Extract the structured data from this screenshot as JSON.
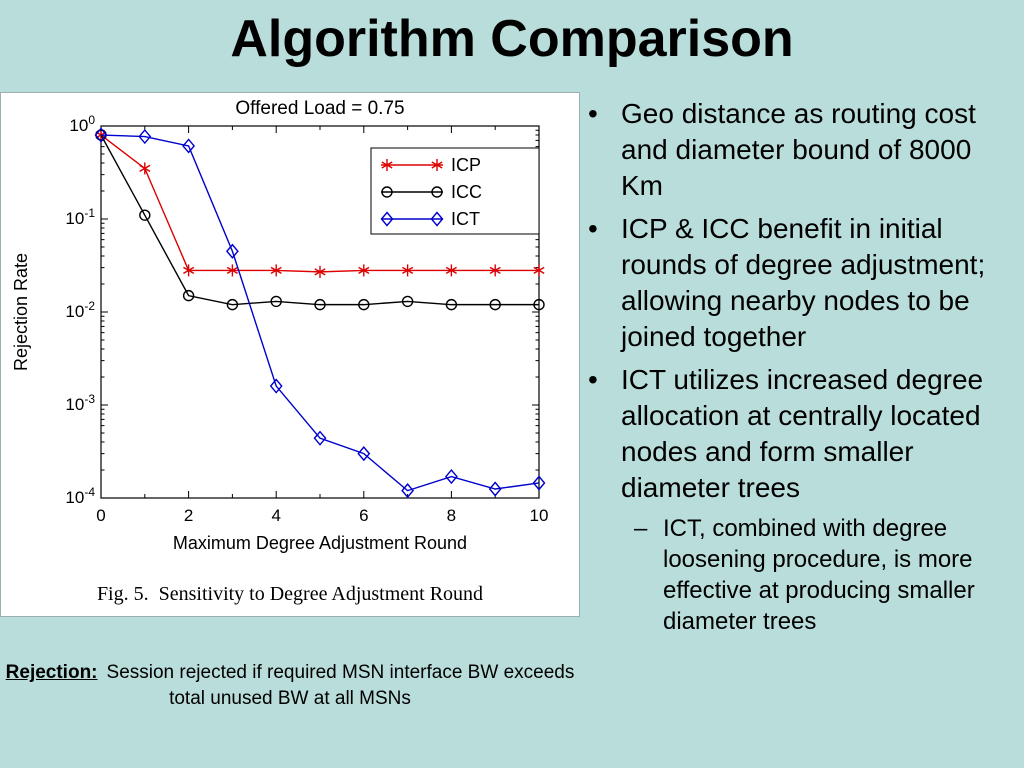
{
  "slide": {
    "title": "Algorithm Comparison",
    "background_color": "#b9dddb",
    "text_color": "#000000",
    "bullets": [
      {
        "level": 1,
        "marker": "•",
        "text": "Geo distance as routing cost and diameter bound of 8000 Km"
      },
      {
        "level": 1,
        "marker": "•",
        "text": "ICP & ICC benefit in initial rounds of degree adjustment; allowing nearby nodes to be joined together"
      },
      {
        "level": 1,
        "marker": "•",
        "text": "ICT utilizes increased degree allocation at centrally located nodes and form smaller diameter trees"
      },
      {
        "level": 2,
        "marker": "–",
        "text": "ICT, combined with degree loosening procedure, is more effective at producing smaller diameter trees"
      }
    ],
    "figure_caption": "Fig. 5.  Sensitivity to Degree Adjustment Round",
    "footnote": {
      "label": "Rejection:",
      "text": "Session rejected if required MSN interface BW exceeds total unused BW at all MSNs"
    }
  },
  "chart_data": {
    "type": "line",
    "title": "Offered Load = 0.75",
    "xlabel": "Maximum Degree Adjustment Round",
    "ylabel": "Rejection Rate",
    "x": [
      0,
      1,
      2,
      3,
      4,
      5,
      6,
      7,
      8,
      9,
      10
    ],
    "xlim": [
      0,
      10
    ],
    "x_ticks": [
      0,
      2,
      4,
      6,
      8,
      10
    ],
    "y_scale": "log",
    "ylim": [
      0.0001,
      1
    ],
    "y_tick_exponents": [
      0,
      -1,
      -2,
      -3,
      -4
    ],
    "grid": false,
    "legend_position": "upper right",
    "series": [
      {
        "name": "ICP",
        "color": "#dd0000",
        "marker": "asterisk",
        "values": [
          0.8,
          0.35,
          0.028,
          0.028,
          0.028,
          0.027,
          0.028,
          0.028,
          0.028,
          0.028,
          0.028
        ]
      },
      {
        "name": "ICC",
        "color": "#000000",
        "marker": "circle",
        "values": [
          0.8,
          0.11,
          0.015,
          0.012,
          0.013,
          0.012,
          0.012,
          0.013,
          0.012,
          0.012,
          0.012
        ]
      },
      {
        "name": "ICT",
        "color": "#0000cc",
        "marker": "diamond",
        "values": [
          0.8,
          0.77,
          0.61,
          0.045,
          0.0016,
          0.00044,
          0.0003,
          0.00012,
          0.00017,
          0.000125,
          0.000145
        ]
      }
    ]
  }
}
